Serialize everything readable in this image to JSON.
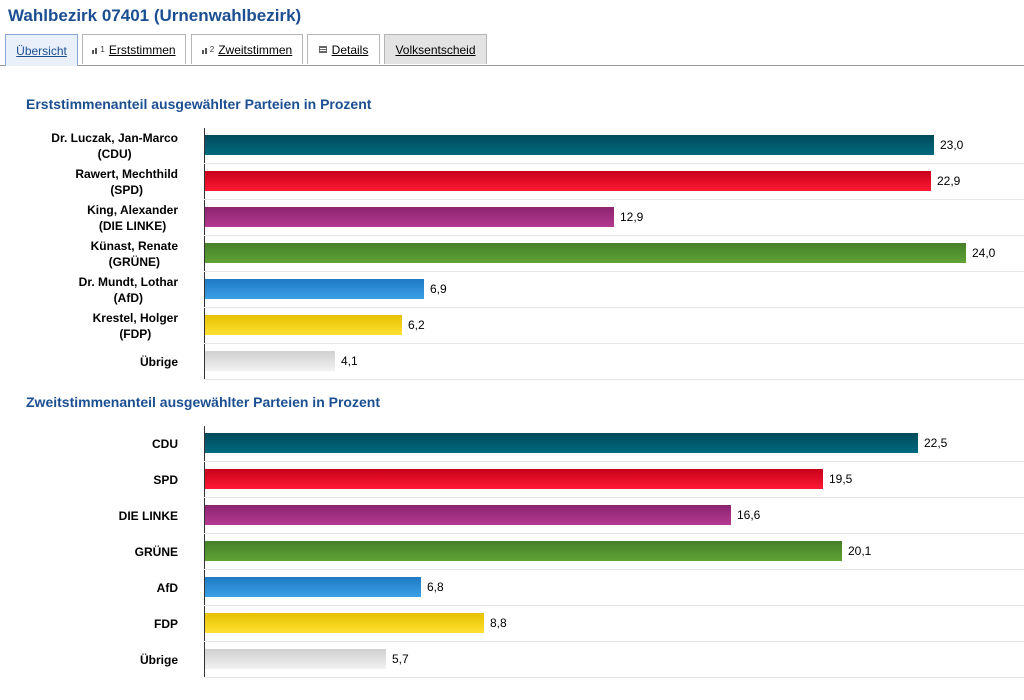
{
  "page": {
    "title": "Wahlbezirk 07401 (Urnenwahlbezirk)"
  },
  "tabs": [
    {
      "label": "Übersicht",
      "icon": "",
      "active": true
    },
    {
      "label": "Erststimmen",
      "icon": "bar-chart-1-icon"
    },
    {
      "label": "Zweitstimmen",
      "icon": "bar-chart-2-icon"
    },
    {
      "label": "Details",
      "icon": "table-icon"
    },
    {
      "label": "Volksentscheid",
      "icon": "",
      "gray": true
    }
  ],
  "colors": {
    "CDU": "#005465",
    "SPD": "#e3001b",
    "DIE LINKE": "#a2307f",
    "GRÜNE": "#52922d",
    "AfD": "#2b8fd6",
    "FDP": "#f5d000",
    "Übrige": "#d9d9d9"
  },
  "chart_data": [
    {
      "type": "bar",
      "orientation": "horizontal",
      "title": "Erststimmenanteil ausgewählter Parteien in Prozent",
      "categories": [
        [
          "Dr. Luczak, Jan-Marco",
          "(CDU)"
        ],
        [
          "Rawert, Mechthild",
          "(SPD)"
        ],
        [
          "King, Alexander",
          "(DIE LINKE)"
        ],
        [
          "Künast, Renate",
          "(GRÜNE)"
        ],
        [
          "Dr. Mundt, Lothar",
          "(AfD)"
        ],
        [
          "Krestel, Holger",
          "(FDP)"
        ],
        [
          "Übrige"
        ]
      ],
      "parties": [
        "CDU",
        "SPD",
        "DIE LINKE",
        "GRÜNE",
        "AfD",
        "FDP",
        "Übrige"
      ],
      "values": [
        23.0,
        22.9,
        12.9,
        24.0,
        6.9,
        6.2,
        4.1
      ],
      "value_labels": [
        "23,0",
        "22,9",
        "12,9",
        "24,0",
        "6,9",
        "6,2",
        "4,1"
      ],
      "xlim": [
        0,
        25
      ]
    },
    {
      "type": "bar",
      "orientation": "horizontal",
      "title": "Zweitstimmenanteil ausgewählter Parteien in Prozent",
      "categories": [
        [
          "CDU"
        ],
        [
          "SPD"
        ],
        [
          "DIE LINKE"
        ],
        [
          "GRÜNE"
        ],
        [
          "AfD"
        ],
        [
          "FDP"
        ],
        [
          "Übrige"
        ]
      ],
      "parties": [
        "CDU",
        "SPD",
        "DIE LINKE",
        "GRÜNE",
        "AfD",
        "FDP",
        "Übrige"
      ],
      "values": [
        22.5,
        19.5,
        16.6,
        20.1,
        6.8,
        8.8,
        5.7
      ],
      "value_labels": [
        "22,5",
        "19,5",
        "16,6",
        "20,1",
        "6,8",
        "8,8",
        "5,7"
      ],
      "xlim": [
        0,
        25
      ]
    }
  ]
}
